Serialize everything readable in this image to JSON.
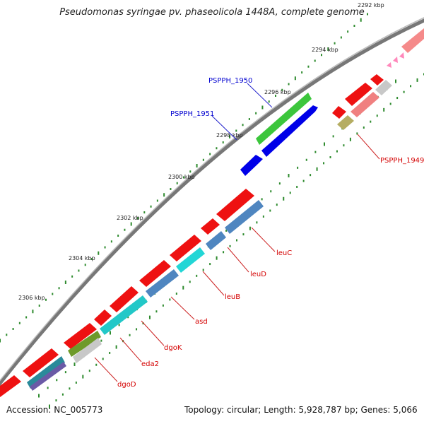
{
  "title": "Pseudomonas syringae pv. phaseolicola 1448A, complete genome",
  "accession": "Accession: NC_005773",
  "stats": "Topology: circular; Length: 5,928,787 bp; Genes: 5,066",
  "ticks": [
    {
      "label": "2292 kbp"
    },
    {
      "label": "2294 kbp"
    },
    {
      "label": "2296 kbp"
    },
    {
      "label": "2298 kbp"
    },
    {
      "label": "2300 kbp"
    },
    {
      "label": "2302 kbp"
    },
    {
      "label": "2304 kbp"
    },
    {
      "label": "2306 kbp"
    }
  ],
  "gene_labels": [
    {
      "name": "PSPPH_1950",
      "color": "#0000d0"
    },
    {
      "name": "PSPPH_1951",
      "color": "#0000d0"
    },
    {
      "name": "PSPPH_1949",
      "color": "#d40000"
    },
    {
      "name": "leuC",
      "color": "#d40000"
    },
    {
      "name": "leuD",
      "color": "#d40000"
    },
    {
      "name": "leuB",
      "color": "#d40000"
    },
    {
      "name": "asd",
      "color": "#d40000"
    },
    {
      "name": "dgoK",
      "color": "#d40000"
    },
    {
      "name": "eda2",
      "color": "#d40000"
    },
    {
      "name": "dgoD",
      "color": "#d40000"
    }
  ]
}
